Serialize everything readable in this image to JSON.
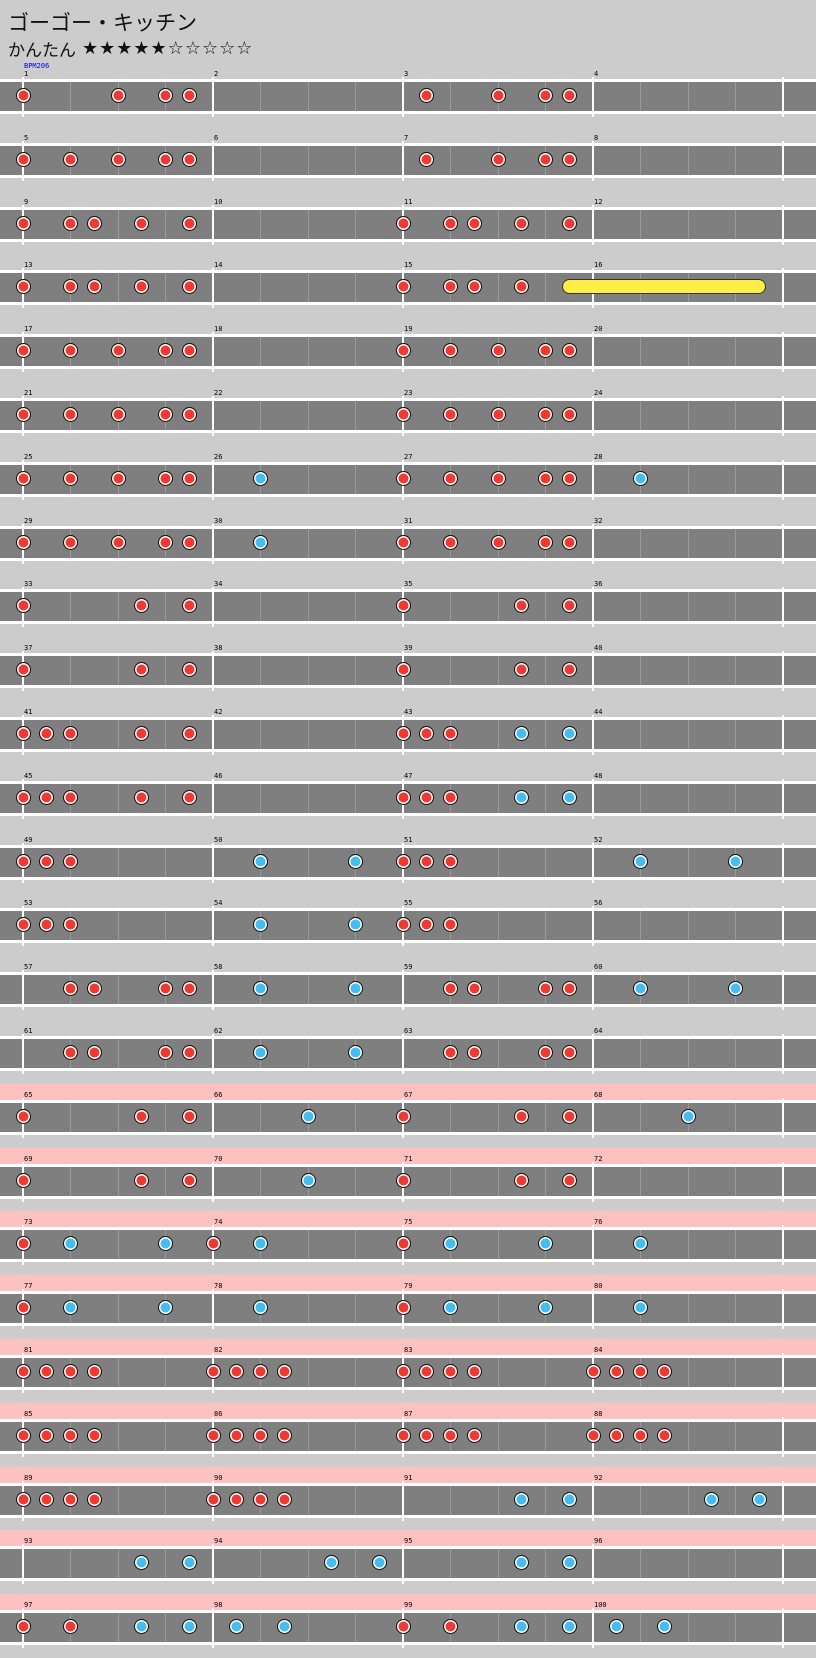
{
  "song": {
    "title": "ゴーゴー・キッチン",
    "difficulty": "かんたん",
    "stars": "★★★★★☆☆☆☆☆",
    "bpm_label": "BPM206"
  },
  "colors": {
    "background": "#cccccc",
    "lane": "#7f7f7f",
    "gogo_band": "#ffc0c0",
    "don": "#ee3a33",
    "ka": "#44bdf0",
    "drumroll": "#ffee44"
  },
  "icons": {
    "don": "red-circle",
    "ka": "blue-circle",
    "drumroll": "yellow-bar"
  },
  "divisions_per_measure": 8,
  "gogo_start_measure": 65,
  "measures": [
    {
      "n": 1,
      "notes": [
        [
          0,
          "d"
        ],
        [
          4,
          "d"
        ],
        [
          6,
          "d"
        ],
        [
          7,
          "d"
        ]
      ]
    },
    {
      "n": 2,
      "notes": []
    },
    {
      "n": 3,
      "notes": [
        [
          1,
          "d"
        ],
        [
          4,
          "d"
        ],
        [
          6,
          "d"
        ],
        [
          7,
          "d"
        ]
      ]
    },
    {
      "n": 4,
      "notes": []
    },
    {
      "n": 5,
      "notes": [
        [
          0,
          "d"
        ],
        [
          2,
          "d"
        ],
        [
          4,
          "d"
        ],
        [
          6,
          "d"
        ],
        [
          7,
          "d"
        ]
      ]
    },
    {
      "n": 6,
      "notes": []
    },
    {
      "n": 7,
      "notes": [
        [
          1,
          "d"
        ],
        [
          4,
          "d"
        ],
        [
          6,
          "d"
        ],
        [
          7,
          "d"
        ]
      ]
    },
    {
      "n": 8,
      "notes": []
    },
    {
      "n": 9,
      "notes": [
        [
          0,
          "d"
        ],
        [
          2,
          "d"
        ],
        [
          3,
          "d"
        ],
        [
          5,
          "d"
        ],
        [
          7,
          "d"
        ]
      ]
    },
    {
      "n": 10,
      "notes": []
    },
    {
      "n": 11,
      "notes": [
        [
          0,
          "d"
        ],
        [
          2,
          "d"
        ],
        [
          3,
          "d"
        ],
        [
          5,
          "d"
        ],
        [
          7,
          "d"
        ]
      ]
    },
    {
      "n": 12,
      "notes": []
    },
    {
      "n": 13,
      "notes": [
        [
          0,
          "d"
        ],
        [
          2,
          "d"
        ],
        [
          3,
          "d"
        ],
        [
          5,
          "d"
        ],
        [
          7,
          "d"
        ]
      ]
    },
    {
      "n": 14,
      "notes": []
    },
    {
      "n": 15,
      "notes": [
        [
          0,
          "d"
        ],
        [
          2,
          "d"
        ],
        [
          3,
          "d"
        ],
        [
          5,
          "d"
        ]
      ],
      "roll": [
        7,
        15
      ]
    },
    {
      "n": 16,
      "notes": []
    },
    {
      "n": 17,
      "notes": [
        [
          0,
          "d"
        ],
        [
          2,
          "d"
        ],
        [
          4,
          "d"
        ],
        [
          6,
          "d"
        ],
        [
          7,
          "d"
        ]
      ]
    },
    {
      "n": 18,
      "notes": []
    },
    {
      "n": 19,
      "notes": [
        [
          0,
          "d"
        ],
        [
          2,
          "d"
        ],
        [
          4,
          "d"
        ],
        [
          6,
          "d"
        ],
        [
          7,
          "d"
        ]
      ]
    },
    {
      "n": 20,
      "notes": []
    },
    {
      "n": 21,
      "notes": [
        [
          0,
          "d"
        ],
        [
          2,
          "d"
        ],
        [
          4,
          "d"
        ],
        [
          6,
          "d"
        ],
        [
          7,
          "d"
        ]
      ]
    },
    {
      "n": 22,
      "notes": []
    },
    {
      "n": 23,
      "notes": [
        [
          0,
          "d"
        ],
        [
          2,
          "d"
        ],
        [
          4,
          "d"
        ],
        [
          6,
          "d"
        ],
        [
          7,
          "d"
        ]
      ]
    },
    {
      "n": 24,
      "notes": []
    },
    {
      "n": 25,
      "notes": [
        [
          0,
          "d"
        ],
        [
          2,
          "d"
        ],
        [
          4,
          "d"
        ],
        [
          6,
          "d"
        ],
        [
          7,
          "d"
        ]
      ]
    },
    {
      "n": 26,
      "notes": [
        [
          2,
          "k"
        ]
      ]
    },
    {
      "n": 27,
      "notes": [
        [
          0,
          "d"
        ],
        [
          2,
          "d"
        ],
        [
          4,
          "d"
        ],
        [
          6,
          "d"
        ],
        [
          7,
          "d"
        ]
      ]
    },
    {
      "n": 28,
      "notes": [
        [
          2,
          "k"
        ]
      ]
    },
    {
      "n": 29,
      "notes": [
        [
          0,
          "d"
        ],
        [
          2,
          "d"
        ],
        [
          4,
          "d"
        ],
        [
          6,
          "d"
        ],
        [
          7,
          "d"
        ]
      ]
    },
    {
      "n": 30,
      "notes": [
        [
          2,
          "k"
        ]
      ]
    },
    {
      "n": 31,
      "notes": [
        [
          0,
          "d"
        ],
        [
          2,
          "d"
        ],
        [
          4,
          "d"
        ],
        [
          6,
          "d"
        ],
        [
          7,
          "d"
        ]
      ]
    },
    {
      "n": 32,
      "notes": []
    },
    {
      "n": 33,
      "notes": [
        [
          0,
          "d"
        ],
        [
          5,
          "d"
        ],
        [
          7,
          "d"
        ]
      ]
    },
    {
      "n": 34,
      "notes": []
    },
    {
      "n": 35,
      "notes": [
        [
          0,
          "d"
        ],
        [
          5,
          "d"
        ],
        [
          7,
          "d"
        ]
      ]
    },
    {
      "n": 36,
      "notes": []
    },
    {
      "n": 37,
      "notes": [
        [
          0,
          "d"
        ],
        [
          5,
          "d"
        ],
        [
          7,
          "d"
        ]
      ]
    },
    {
      "n": 38,
      "notes": []
    },
    {
      "n": 39,
      "notes": [
        [
          0,
          "d"
        ],
        [
          5,
          "d"
        ],
        [
          7,
          "d"
        ]
      ]
    },
    {
      "n": 40,
      "notes": []
    },
    {
      "n": 41,
      "notes": [
        [
          0,
          "d"
        ],
        [
          1,
          "d"
        ],
        [
          2,
          "d"
        ],
        [
          5,
          "d"
        ],
        [
          7,
          "d"
        ]
      ]
    },
    {
      "n": 42,
      "notes": []
    },
    {
      "n": 43,
      "notes": [
        [
          0,
          "d"
        ],
        [
          1,
          "d"
        ],
        [
          2,
          "d"
        ],
        [
          5,
          "k"
        ],
        [
          7,
          "k"
        ]
      ]
    },
    {
      "n": 44,
      "notes": []
    },
    {
      "n": 45,
      "notes": [
        [
          0,
          "d"
        ],
        [
          1,
          "d"
        ],
        [
          2,
          "d"
        ],
        [
          5,
          "d"
        ],
        [
          7,
          "d"
        ]
      ]
    },
    {
      "n": 46,
      "notes": []
    },
    {
      "n": 47,
      "notes": [
        [
          0,
          "d"
        ],
        [
          1,
          "d"
        ],
        [
          2,
          "d"
        ],
        [
          5,
          "k"
        ],
        [
          7,
          "k"
        ]
      ]
    },
    {
      "n": 48,
      "notes": []
    },
    {
      "n": 49,
      "notes": [
        [
          0,
          "d"
        ],
        [
          1,
          "d"
        ],
        [
          2,
          "d"
        ]
      ]
    },
    {
      "n": 50,
      "notes": [
        [
          2,
          "k"
        ],
        [
          6,
          "k"
        ]
      ]
    },
    {
      "n": 51,
      "notes": [
        [
          0,
          "d"
        ],
        [
          1,
          "d"
        ],
        [
          2,
          "d"
        ]
      ]
    },
    {
      "n": 52,
      "notes": [
        [
          2,
          "k"
        ],
        [
          6,
          "k"
        ]
      ]
    },
    {
      "n": 53,
      "notes": [
        [
          0,
          "d"
        ],
        [
          1,
          "d"
        ],
        [
          2,
          "d"
        ]
      ]
    },
    {
      "n": 54,
      "notes": [
        [
          2,
          "k"
        ],
        [
          6,
          "k"
        ]
      ]
    },
    {
      "n": 55,
      "notes": [
        [
          0,
          "d"
        ],
        [
          1,
          "d"
        ],
        [
          2,
          "d"
        ]
      ]
    },
    {
      "n": 56,
      "notes": []
    },
    {
      "n": 57,
      "notes": [
        [
          2,
          "d"
        ],
        [
          3,
          "d"
        ],
        [
          6,
          "d"
        ],
        [
          7,
          "d"
        ]
      ]
    },
    {
      "n": 58,
      "notes": [
        [
          2,
          "k"
        ],
        [
          6,
          "k"
        ]
      ]
    },
    {
      "n": 59,
      "notes": [
        [
          2,
          "d"
        ],
        [
          3,
          "d"
        ],
        [
          6,
          "d"
        ],
        [
          7,
          "d"
        ]
      ]
    },
    {
      "n": 60,
      "notes": [
        [
          2,
          "k"
        ],
        [
          6,
          "k"
        ]
      ]
    },
    {
      "n": 61,
      "notes": [
        [
          2,
          "d"
        ],
        [
          3,
          "d"
        ],
        [
          6,
          "d"
        ],
        [
          7,
          "d"
        ]
      ]
    },
    {
      "n": 62,
      "notes": [
        [
          2,
          "k"
        ],
        [
          6,
          "k"
        ]
      ]
    },
    {
      "n": 63,
      "notes": [
        [
          2,
          "d"
        ],
        [
          3,
          "d"
        ],
        [
          6,
          "d"
        ],
        [
          7,
          "d"
        ]
      ]
    },
    {
      "n": 64,
      "notes": []
    },
    {
      "n": 65,
      "notes": [
        [
          0,
          "d"
        ],
        [
          5,
          "d"
        ],
        [
          7,
          "d"
        ]
      ]
    },
    {
      "n": 66,
      "notes": [
        [
          4,
          "k"
        ]
      ]
    },
    {
      "n": 67,
      "notes": [
        [
          0,
          "d"
        ],
        [
          5,
          "d"
        ],
        [
          7,
          "d"
        ]
      ]
    },
    {
      "n": 68,
      "notes": [
        [
          4,
          "k"
        ]
      ]
    },
    {
      "n": 69,
      "notes": [
        [
          0,
          "d"
        ],
        [
          5,
          "d"
        ],
        [
          7,
          "d"
        ]
      ]
    },
    {
      "n": 70,
      "notes": [
        [
          4,
          "k"
        ]
      ]
    },
    {
      "n": 71,
      "notes": [
        [
          0,
          "d"
        ],
        [
          5,
          "d"
        ],
        [
          7,
          "d"
        ]
      ]
    },
    {
      "n": 72,
      "notes": []
    },
    {
      "n": 73,
      "notes": [
        [
          0,
          "d"
        ],
        [
          2,
          "k"
        ],
        [
          6,
          "k"
        ]
      ]
    },
    {
      "n": 74,
      "notes": [
        [
          0,
          "d"
        ],
        [
          2,
          "k"
        ]
      ]
    },
    {
      "n": 75,
      "notes": [
        [
          0,
          "d"
        ],
        [
          2,
          "k"
        ],
        [
          6,
          "k"
        ]
      ]
    },
    {
      "n": 76,
      "notes": [
        [
          2,
          "k"
        ]
      ]
    },
    {
      "n": 77,
      "notes": [
        [
          0,
          "d"
        ],
        [
          2,
          "k"
        ],
        [
          6,
          "k"
        ]
      ]
    },
    {
      "n": 78,
      "notes": [
        [
          2,
          "k"
        ]
      ]
    },
    {
      "n": 79,
      "notes": [
        [
          0,
          "d"
        ],
        [
          2,
          "k"
        ],
        [
          6,
          "k"
        ]
      ]
    },
    {
      "n": 80,
      "notes": [
        [
          2,
          "k"
        ]
      ]
    },
    {
      "n": 81,
      "notes": [
        [
          0,
          "d"
        ],
        [
          1,
          "d"
        ],
        [
          2,
          "d"
        ],
        [
          3,
          "d"
        ]
      ]
    },
    {
      "n": 82,
      "notes": [
        [
          0,
          "d"
        ],
        [
          1,
          "d"
        ],
        [
          2,
          "d"
        ],
        [
          3,
          "d"
        ]
      ]
    },
    {
      "n": 83,
      "notes": [
        [
          0,
          "d"
        ],
        [
          1,
          "d"
        ],
        [
          2,
          "d"
        ],
        [
          3,
          "d"
        ]
      ]
    },
    {
      "n": 84,
      "notes": [
        [
          0,
          "d"
        ],
        [
          1,
          "d"
        ],
        [
          2,
          "d"
        ],
        [
          3,
          "d"
        ]
      ]
    },
    {
      "n": 85,
      "notes": [
        [
          0,
          "d"
        ],
        [
          1,
          "d"
        ],
        [
          2,
          "d"
        ],
        [
          3,
          "d"
        ]
      ]
    },
    {
      "n": 86,
      "notes": [
        [
          0,
          "d"
        ],
        [
          1,
          "d"
        ],
        [
          2,
          "d"
        ],
        [
          3,
          "d"
        ]
      ]
    },
    {
      "n": 87,
      "notes": [
        [
          0,
          "d"
        ],
        [
          1,
          "d"
        ],
        [
          2,
          "d"
        ],
        [
          3,
          "d"
        ]
      ]
    },
    {
      "n": 88,
      "notes": [
        [
          0,
          "d"
        ],
        [
          1,
          "d"
        ],
        [
          2,
          "d"
        ],
        [
          3,
          "d"
        ]
      ]
    },
    {
      "n": 89,
      "notes": [
        [
          0,
          "d"
        ],
        [
          1,
          "d"
        ],
        [
          2,
          "d"
        ],
        [
          3,
          "d"
        ]
      ]
    },
    {
      "n": 90,
      "notes": [
        [
          0,
          "d"
        ],
        [
          1,
          "d"
        ],
        [
          2,
          "d"
        ],
        [
          3,
          "d"
        ]
      ]
    },
    {
      "n": 91,
      "notes": [
        [
          5,
          "k"
        ],
        [
          7,
          "k"
        ]
      ]
    },
    {
      "n": 92,
      "notes": [
        [
          5,
          "k"
        ],
        [
          7,
          "k"
        ]
      ]
    },
    {
      "n": 93,
      "notes": [
        [
          5,
          "k"
        ],
        [
          7,
          "k"
        ]
      ]
    },
    {
      "n": 94,
      "notes": [
        [
          5,
          "k"
        ],
        [
          7,
          "k"
        ]
      ]
    },
    {
      "n": 95,
      "notes": [
        [
          5,
          "k"
        ],
        [
          7,
          "k"
        ]
      ]
    },
    {
      "n": 96,
      "notes": []
    },
    {
      "n": 97,
      "notes": [
        [
          0,
          "d"
        ],
        [
          2,
          "d"
        ],
        [
          5,
          "k"
        ],
        [
          7,
          "k"
        ]
      ]
    },
    {
      "n": 98,
      "notes": [
        [
          1,
          "k"
        ],
        [
          3,
          "k"
        ]
      ]
    },
    {
      "n": 99,
      "notes": [
        [
          0,
          "d"
        ],
        [
          2,
          "d"
        ],
        [
          5,
          "k"
        ],
        [
          7,
          "k"
        ]
      ]
    },
    {
      "n": 100,
      "notes": [
        [
          1,
          "k"
        ],
        [
          3,
          "k"
        ]
      ]
    }
  ]
}
